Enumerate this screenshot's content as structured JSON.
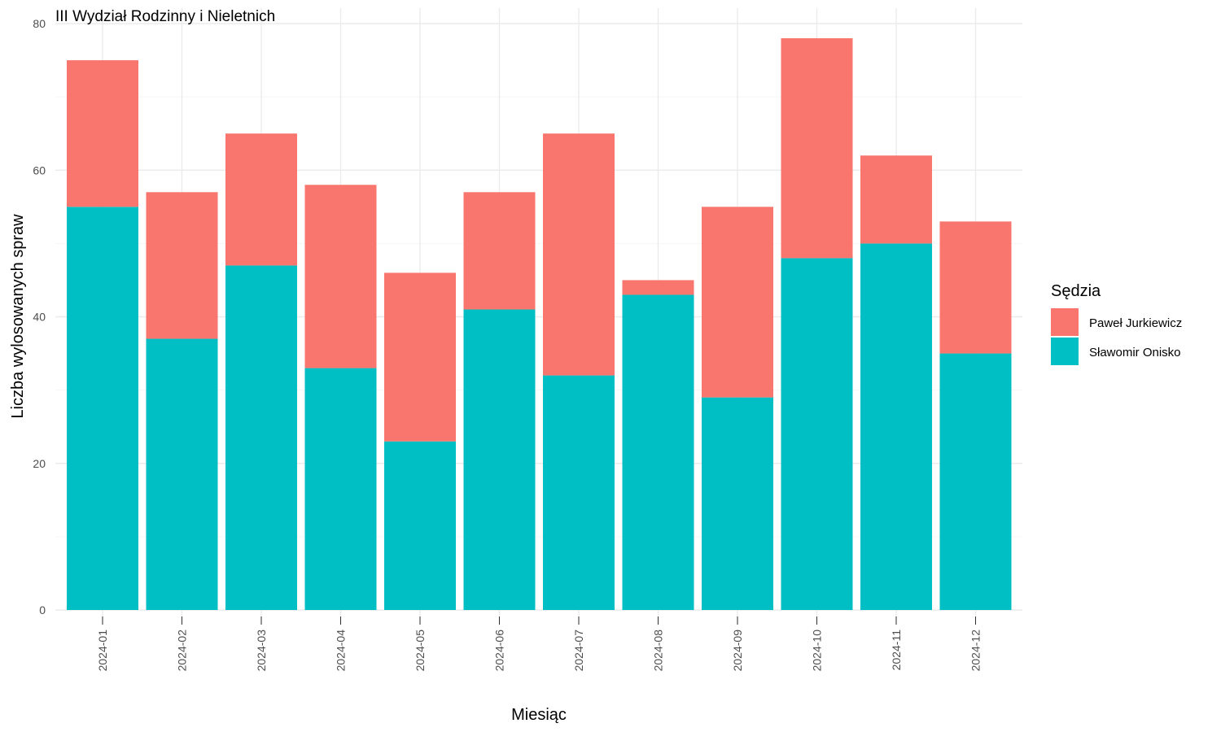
{
  "chart_data": {
    "type": "bar",
    "stacked": true,
    "title": "III Wydział Rodzinny i Nieletnich",
    "xlabel": "Miesiąc",
    "ylabel": "Liczba wylosowanych spraw",
    "ylim": [
      0,
      80
    ],
    "yticks": [
      0,
      20,
      40,
      60,
      80
    ],
    "grid": true,
    "legend_position": "right",
    "legend_title": "Sędzia",
    "categories": [
      "2024-01",
      "2024-02",
      "2024-03",
      "2024-04",
      "2024-05",
      "2024-06",
      "2024-07",
      "2024-08",
      "2024-09",
      "2024-10",
      "2024-11",
      "2024-12"
    ],
    "series": [
      {
        "name": "Sławomir Onisko",
        "color": "#00BFC4",
        "values": [
          55,
          37,
          47,
          33,
          23,
          41,
          32,
          43,
          29,
          48,
          50,
          35
        ]
      },
      {
        "name": "Paweł Jurkiewicz",
        "color": "#F8766D",
        "values": [
          20,
          20,
          18,
          25,
          23,
          16,
          33,
          2,
          26,
          30,
          12,
          18
        ]
      }
    ],
    "legend_order": [
      "Paweł Jurkiewicz",
      "Sławomir Onisko"
    ]
  }
}
